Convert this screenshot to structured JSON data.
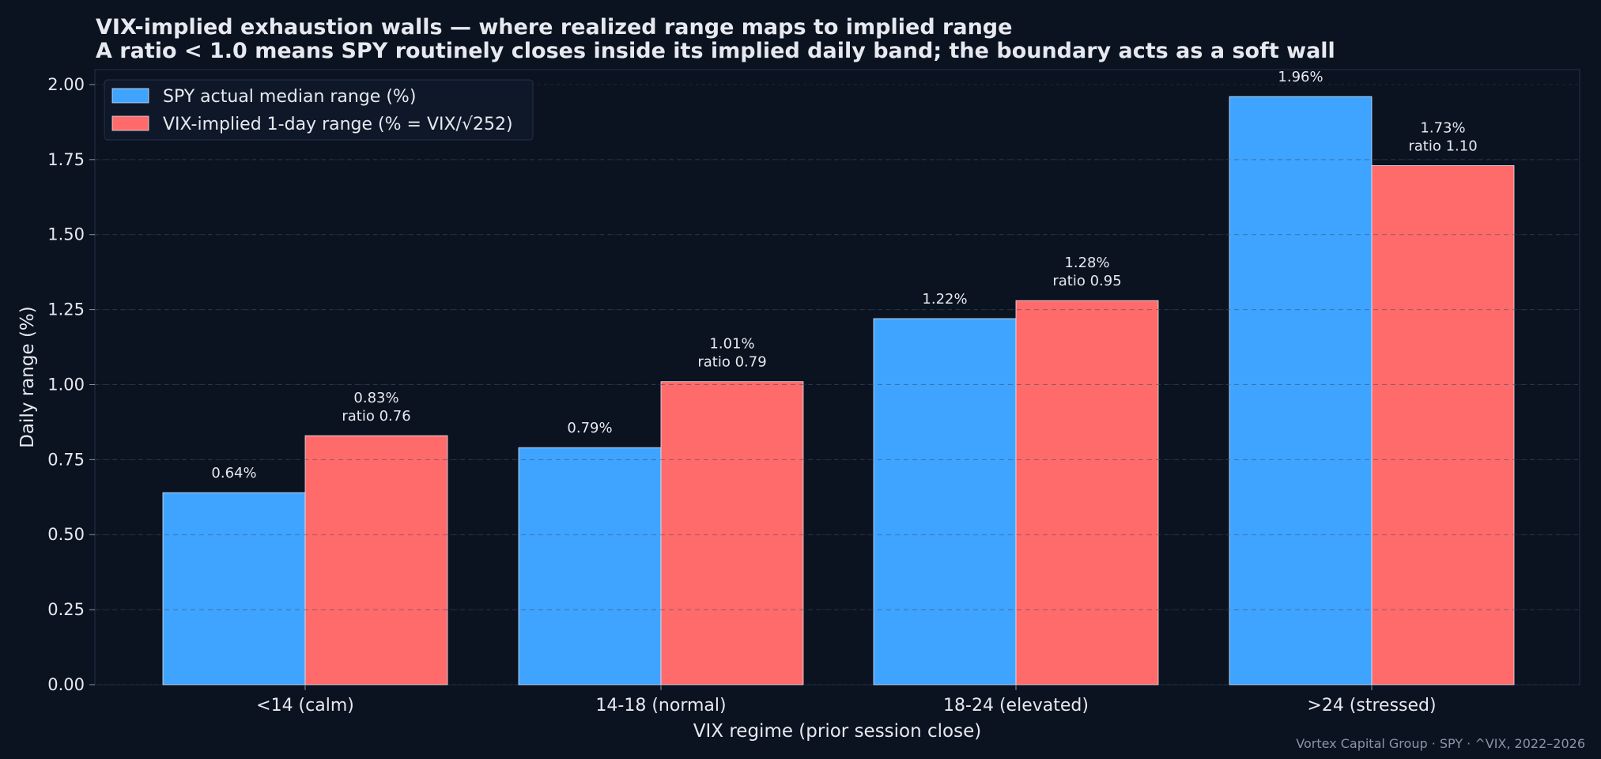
{
  "title": "VIX-implied exhaustion walls — where realized range maps to implied range",
  "subtitle": "A ratio < 1.0 means SPY routinely closes inside its implied daily band; the boundary acts as a soft wall",
  "footer": "Vortex Capital Group  ·  SPY · ^VIX, 2022–2026",
  "colors": {
    "background": "#0b1220",
    "spy_bar": "#3fa4ff",
    "vix_bar": "#ff6b6b",
    "text": "#e6e9ef",
    "grid": "#2a3446",
    "hline": "#3a4a64"
  },
  "chart_data": {
    "type": "bar",
    "categories": [
      "<14 (calm)",
      "14-18 (normal)",
      "18-24 (elevated)",
      ">24 (stressed)"
    ],
    "series": [
      {
        "name": "SPY actual median range (%)",
        "values": [
          0.64,
          0.79,
          1.22,
          1.96
        ],
        "labels": [
          "0.64%",
          "0.79%",
          "1.22%",
          "1.96%"
        ]
      },
      {
        "name": "VIX-implied 1-day range (% = VIX/√252)",
        "values": [
          0.83,
          1.01,
          1.28,
          1.73
        ],
        "labels": [
          "0.83%",
          "1.01%",
          "1.28%",
          "1.73%"
        ],
        "ratio_labels": [
          "ratio 0.76",
          "ratio 0.79",
          "ratio 0.95",
          "ratio 1.10"
        ]
      }
    ],
    "xlabel": "VIX regime (prior session close)",
    "ylabel": "Daily range (%)",
    "ylim": [
      0,
      2.05
    ],
    "yticks": [
      "0.00",
      "0.25",
      "0.50",
      "0.75",
      "1.00",
      "1.25",
      "1.50",
      "1.75",
      "2.00"
    ],
    "grid": true,
    "legend_position": "top-left"
  }
}
